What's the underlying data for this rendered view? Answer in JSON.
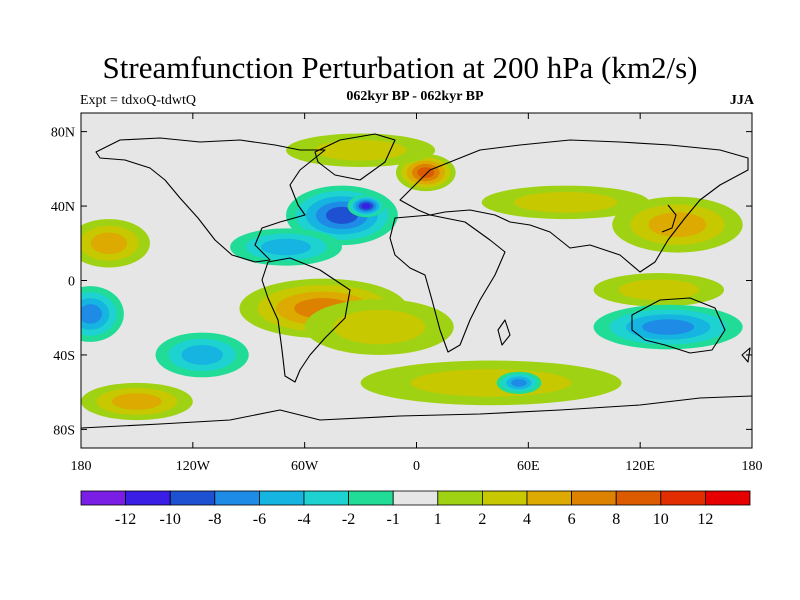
{
  "title": "Streamfunction Perturbation at 200 hPa (km2/s)",
  "subtitle_left": "Expt = tdxoQ-tdwtQ",
  "subtitle_center": "062kyr BP - 062kyr BP",
  "subtitle_right": "JJA",
  "map": {
    "projection": "cylindrical equidistant",
    "lon_range": [
      -180,
      180
    ],
    "lat_range": [
      -90,
      90
    ],
    "lat_ticks": [
      {
        "value": 80,
        "label": "80N"
      },
      {
        "value": 40,
        "label": "40N"
      },
      {
        "value": 0,
        "label": "0"
      },
      {
        "value": -40,
        "label": "40S"
      },
      {
        "value": -80,
        "label": "80S"
      }
    ],
    "lon_ticks": [
      {
        "value": -180,
        "label": "180"
      },
      {
        "value": -120,
        "label": "120W"
      },
      {
        "value": -60,
        "label": "60W"
      },
      {
        "value": 0,
        "label": "0"
      },
      {
        "value": 60,
        "label": "60E"
      },
      {
        "value": 120,
        "label": "120E"
      },
      {
        "value": 180,
        "label": "180"
      }
    ],
    "background_color": "#e6e6e6",
    "anomaly_features": [
      {
        "name": "north-pacific-positive",
        "lon": -165,
        "lat": 20,
        "rx": 22,
        "ry": 13,
        "level": 3
      },
      {
        "name": "south-pacific-negative",
        "lon": -175,
        "lat": -18,
        "rx": 18,
        "ry": 15,
        "level": -4
      },
      {
        "name": "south-pacific-minus-60",
        "lon": -115,
        "lat": -40,
        "rx": 25,
        "ry": 12,
        "level": -3
      },
      {
        "name": "north-atlantic-negative",
        "lon": -40,
        "lat": 35,
        "rx": 30,
        "ry": 16,
        "level": -5
      },
      {
        "name": "north-atlantic-core",
        "lon": -27,
        "lat": 40,
        "rx": 10,
        "ry": 6,
        "level": -6
      },
      {
        "name": "tropical-atlantic-negative",
        "lon": -70,
        "lat": 18,
        "rx": 30,
        "ry": 10,
        "level": -3
      },
      {
        "name": "south-america-positive",
        "lon": -50,
        "lat": -15,
        "rx": 45,
        "ry": 16,
        "level": 4
      },
      {
        "name": "south-atlantic-positive",
        "lon": -20,
        "lat": -25,
        "rx": 40,
        "ry": 15,
        "level": 2
      },
      {
        "name": "europe-positive",
        "lon": 5,
        "lat": 58,
        "rx": 16,
        "ry": 10,
        "level": 5
      },
      {
        "name": "arctic-positive",
        "lon": -30,
        "lat": 70,
        "rx": 40,
        "ry": 9,
        "level": 2
      },
      {
        "name": "asia-positive",
        "lon": 80,
        "lat": 42,
        "rx": 45,
        "ry": 9,
        "level": 2
      },
      {
        "name": "east-asia-positive",
        "lon": 140,
        "lat": 30,
        "rx": 35,
        "ry": 15,
        "level": 3
      },
      {
        "name": "west-pacific-positive",
        "lon": 130,
        "lat": -5,
        "rx": 35,
        "ry": 9,
        "level": 2
      },
      {
        "name": "australia-negative",
        "lon": 135,
        "lat": -25,
        "rx": 40,
        "ry": 12,
        "level": -4
      },
      {
        "name": "southern-ocean-positive",
        "lon": 40,
        "lat": -55,
        "rx": 70,
        "ry": 12,
        "level": 2
      },
      {
        "name": "southern-ocean-negative",
        "lon": 55,
        "lat": -55,
        "rx": 12,
        "ry": 6,
        "level": -4
      },
      {
        "name": "south-pacific-positive-60",
        "lon": -150,
        "lat": -65,
        "rx": 30,
        "ry": 10,
        "level": 3
      }
    ]
  },
  "colorbar": {
    "colors": [
      "#7a1ee6",
      "#3a1ee6",
      "#1e50d2",
      "#1e8ce6",
      "#16b4e0",
      "#1ed2d2",
      "#20dc96",
      "#e6e6e6",
      "#a0d214",
      "#c8c800",
      "#dcaa00",
      "#dc8200",
      "#dc5a00",
      "#e12d00",
      "#e60000"
    ],
    "labels": [
      "-12",
      "-10",
      "-8",
      "-6",
      "-4",
      "-2",
      "-1",
      "1",
      "2",
      "4",
      "6",
      "8",
      "10",
      "12"
    ]
  }
}
